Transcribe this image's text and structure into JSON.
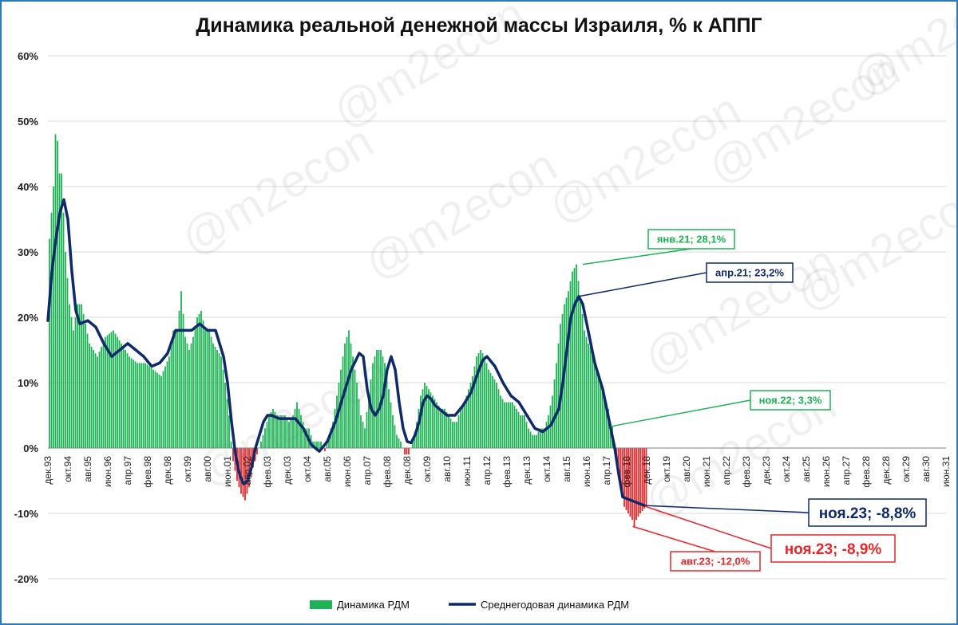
{
  "chart_data": {
    "type": "bar",
    "title": "Динамика реальной денежной массы Израиля, % к АППГ",
    "watermark": "@m2econ",
    "ylim": [
      -20,
      60
    ],
    "yticks": [
      "-20%",
      "-10%",
      "0%",
      "10%",
      "20%",
      "30%",
      "40%",
      "50%",
      "60%"
    ],
    "xlim": [
      "дек.93",
      "июн.31"
    ],
    "xticks": [
      "дек.93",
      "окт.94",
      "авг.95",
      "июн.96",
      "апр.97",
      "фев.98",
      "дек.98",
      "окт.99",
      "авг.00",
      "июн.01",
      "апр.02",
      "фев.03",
      "дек.03",
      "окт.04",
      "авг.05",
      "июн.06",
      "апр.07",
      "фев.08",
      "дек.08",
      "окт.09",
      "авг.10",
      "июн.11",
      "апр.12",
      "фев.13",
      "дек.13",
      "окт.14",
      "авг.15",
      "июн.16",
      "апр.17",
      "фев.18",
      "дек.18",
      "окт.19",
      "авг.20",
      "июн.21",
      "апр.22",
      "фев.23",
      "дек.23",
      "окт.24",
      "авг.25",
      "июн.26",
      "апр.27",
      "фев.28",
      "дек.28",
      "окт.29",
      "авг.30",
      "июн.31"
    ],
    "grid": true,
    "legend_position": "bottom",
    "series": [
      {
        "name": "Динамика РДМ",
        "type": "bar",
        "color_positive": "#1db354",
        "color_negative": "#e8262a",
        "x_unit": "months since дек.93",
        "points": [
          [
            0,
            32
          ],
          [
            2,
            40
          ],
          [
            3,
            48
          ],
          [
            4,
            47
          ],
          [
            5,
            42
          ],
          [
            6,
            42
          ],
          [
            8,
            30
          ],
          [
            10,
            22
          ],
          [
            12,
            18
          ],
          [
            14,
            22
          ],
          [
            16,
            22
          ],
          [
            18,
            19
          ],
          [
            20,
            16
          ],
          [
            24,
            14
          ],
          [
            28,
            17
          ],
          [
            32,
            18
          ],
          [
            36,
            16
          ],
          [
            40,
            14
          ],
          [
            44,
            13
          ],
          [
            48,
            13
          ],
          [
            52,
            12
          ],
          [
            56,
            11
          ],
          [
            60,
            14
          ],
          [
            62,
            18
          ],
          [
            64,
            18
          ],
          [
            66,
            24
          ],
          [
            68,
            17
          ],
          [
            70,
            15
          ],
          [
            72,
            17
          ],
          [
            74,
            20
          ],
          [
            76,
            21
          ],
          [
            78,
            18
          ],
          [
            80,
            18
          ],
          [
            82,
            16
          ],
          [
            86,
            14
          ],
          [
            88,
            10
          ],
          [
            90,
            5
          ],
          [
            91,
            1
          ],
          [
            92,
            -2
          ],
          [
            94,
            -5
          ],
          [
            96,
            -7
          ],
          [
            98,
            -8
          ],
          [
            100,
            -6
          ],
          [
            102,
            -3
          ],
          [
            104,
            -1
          ],
          [
            106,
            1
          ],
          [
            108,
            3
          ],
          [
            110,
            5
          ],
          [
            112,
            6
          ],
          [
            114,
            5
          ],
          [
            116,
            5
          ],
          [
            118,
            5
          ],
          [
            120,
            4
          ],
          [
            122,
            5
          ],
          [
            124,
            7
          ],
          [
            126,
            5
          ],
          [
            128,
            3
          ],
          [
            130,
            3
          ],
          [
            132,
            1
          ],
          [
            134,
            1
          ],
          [
            136,
            1
          ],
          [
            138,
            -0.5
          ],
          [
            140,
            2
          ],
          [
            142,
            4
          ],
          [
            144,
            8
          ],
          [
            146,
            12
          ],
          [
            148,
            16
          ],
          [
            150,
            18
          ],
          [
            152,
            14
          ],
          [
            154,
            10
          ],
          [
            156,
            5
          ],
          [
            158,
            3
          ],
          [
            160,
            8
          ],
          [
            162,
            13
          ],
          [
            164,
            15
          ],
          [
            166,
            15
          ],
          [
            168,
            13
          ],
          [
            170,
            9
          ],
          [
            172,
            5
          ],
          [
            174,
            2
          ],
          [
            176,
            1
          ],
          [
            178,
            -1
          ],
          [
            180,
            -1
          ],
          [
            182,
            1
          ],
          [
            184,
            4
          ],
          [
            186,
            8
          ],
          [
            188,
            10
          ],
          [
            190,
            9
          ],
          [
            192,
            8
          ],
          [
            194,
            7
          ],
          [
            196,
            6
          ],
          [
            198,
            6
          ],
          [
            200,
            5
          ],
          [
            202,
            4
          ],
          [
            204,
            4
          ],
          [
            206,
            6
          ],
          [
            208,
            7
          ],
          [
            210,
            9
          ],
          [
            212,
            11
          ],
          [
            214,
            14
          ],
          [
            216,
            15
          ],
          [
            218,
            14
          ],
          [
            220,
            12
          ],
          [
            222,
            11
          ],
          [
            224,
            10
          ],
          [
            226,
            8
          ],
          [
            228,
            7
          ],
          [
            230,
            7
          ],
          [
            232,
            7
          ],
          [
            234,
            6
          ],
          [
            236,
            5
          ],
          [
            238,
            5
          ],
          [
            240,
            3
          ],
          [
            242,
            2
          ],
          [
            244,
            2
          ],
          [
            246,
            3
          ],
          [
            248,
            3
          ],
          [
            250,
            5
          ],
          [
            252,
            8
          ],
          [
            254,
            13
          ],
          [
            256,
            19
          ],
          [
            258,
            22
          ],
          [
            260,
            24
          ],
          [
            262,
            27
          ],
          [
            264,
            28.1
          ],
          [
            266,
            23
          ],
          [
            268,
            18
          ],
          [
            270,
            16
          ],
          [
            272,
            15
          ],
          [
            274,
            12
          ],
          [
            276,
            10
          ],
          [
            278,
            8
          ],
          [
            280,
            6
          ],
          [
            281,
            4
          ],
          [
            282,
            3.3
          ],
          [
            284,
            -2
          ],
          [
            286,
            -6
          ],
          [
            288,
            -9
          ],
          [
            290,
            -10
          ],
          [
            292,
            -11
          ],
          [
            293,
            -12
          ],
          [
            294,
            -11
          ],
          [
            296,
            -10
          ],
          [
            299,
            -8.9
          ]
        ]
      },
      {
        "name": "Среднегодовая динамика РДМ",
        "type": "line",
        "color": "#0e2a6b",
        "x_unit": "months since дек.93",
        "points": [
          [
            0,
            19.5
          ],
          [
            2,
            27
          ],
          [
            4,
            32
          ],
          [
            6,
            36
          ],
          [
            8,
            38
          ],
          [
            10,
            35
          ],
          [
            12,
            27
          ],
          [
            14,
            21
          ],
          [
            16,
            19
          ],
          [
            20,
            19.5
          ],
          [
            24,
            18.5
          ],
          [
            28,
            16
          ],
          [
            32,
            14
          ],
          [
            36,
            15
          ],
          [
            40,
            16
          ],
          [
            44,
            15
          ],
          [
            48,
            14
          ],
          [
            52,
            12.5
          ],
          [
            56,
            13
          ],
          [
            60,
            14.5
          ],
          [
            64,
            18
          ],
          [
            68,
            18
          ],
          [
            72,
            18
          ],
          [
            76,
            19
          ],
          [
            80,
            18
          ],
          [
            84,
            18
          ],
          [
            88,
            14
          ],
          [
            90,
            10
          ],
          [
            92,
            4
          ],
          [
            94,
            -1
          ],
          [
            96,
            -4
          ],
          [
            98,
            -5.5
          ],
          [
            100,
            -5
          ],
          [
            102,
            -3
          ],
          [
            104,
            0
          ],
          [
            106,
            2
          ],
          [
            108,
            4
          ],
          [
            110,
            5
          ],
          [
            112,
            5
          ],
          [
            116,
            4.5
          ],
          [
            120,
            4.5
          ],
          [
            124,
            4.5
          ],
          [
            128,
            3
          ],
          [
            132,
            0.5
          ],
          [
            136,
            -0.5
          ],
          [
            140,
            1
          ],
          [
            144,
            4
          ],
          [
            148,
            8
          ],
          [
            152,
            12
          ],
          [
            156,
            14.5
          ],
          [
            158,
            14
          ],
          [
            160,
            9
          ],
          [
            162,
            6
          ],
          [
            164,
            5
          ],
          [
            166,
            6
          ],
          [
            168,
            8
          ],
          [
            170,
            12
          ],
          [
            172,
            14
          ],
          [
            174,
            12
          ],
          [
            176,
            7
          ],
          [
            178,
            3
          ],
          [
            180,
            1
          ],
          [
            182,
            0.8
          ],
          [
            184,
            2
          ],
          [
            186,
            4
          ],
          [
            188,
            7
          ],
          [
            190,
            8
          ],
          [
            192,
            7.5
          ],
          [
            194,
            6.5
          ],
          [
            196,
            6
          ],
          [
            198,
            5.5
          ],
          [
            200,
            5
          ],
          [
            204,
            5
          ],
          [
            208,
            6.5
          ],
          [
            212,
            8.5
          ],
          [
            216,
            12
          ],
          [
            218,
            13.5
          ],
          [
            220,
            14
          ],
          [
            224,
            12.5
          ],
          [
            228,
            10
          ],
          [
            232,
            8
          ],
          [
            236,
            7
          ],
          [
            240,
            5
          ],
          [
            244,
            3
          ],
          [
            248,
            2.5
          ],
          [
            252,
            3.5
          ],
          [
            256,
            6
          ],
          [
            258,
            10
          ],
          [
            260,
            15
          ],
          [
            262,
            20
          ],
          [
            264,
            22
          ],
          [
            266,
            23.2
          ],
          [
            268,
            22
          ],
          [
            270,
            19
          ],
          [
            272,
            16
          ],
          [
            274,
            13
          ],
          [
            276,
            11
          ],
          [
            278,
            9
          ],
          [
            280,
            6
          ],
          [
            282,
            3
          ],
          [
            284,
            0
          ],
          [
            286,
            -4
          ],
          [
            288,
            -7.5
          ],
          [
            299,
            -8.8
          ]
        ]
      }
    ],
    "annotations": [
      {
        "text": "янв.21; 28,1%",
        "color": "#1db354"
      },
      {
        "text": "апр.21; 23,2%",
        "color": "#0e2a6b"
      },
      {
        "text": "ноя.22; 3,3%",
        "color": "#1db354"
      },
      {
        "text": "ноя.23; -8,8%",
        "color": "#0e2a6b"
      },
      {
        "text": "ноя.23; -8,9%",
        "color": "#e8262a"
      },
      {
        "text": "авг.23; -12,0%",
        "color": "#e8262a"
      }
    ]
  }
}
